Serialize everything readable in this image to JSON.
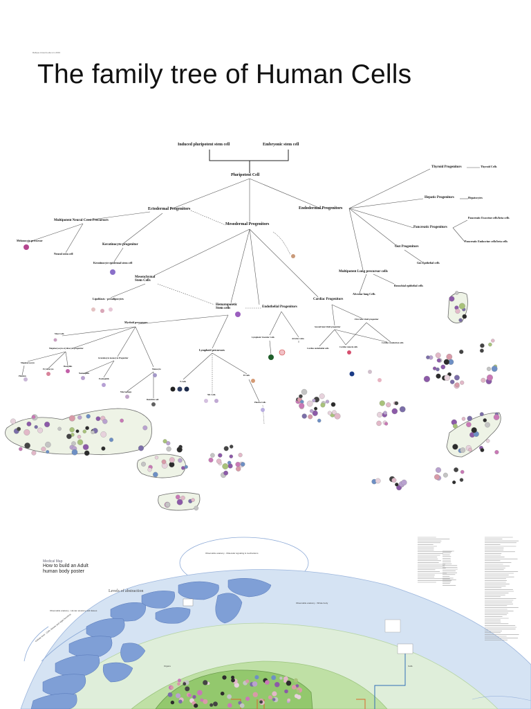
{
  "header": {
    "small_caption": "Rafique Ansari-Leila Lim 2019",
    "title": "The family tree of Human Cells"
  },
  "tree": {
    "induced": "Induced pluripotent stem cell",
    "embryonic": "Embryonic stem cell",
    "pluripotent": "Pluripotent Cell",
    "ectodermal": "Ectodermal Progenitors",
    "endodermal": "Endodermal Progenitors",
    "mesodermal": "Mesodermal Progenitors",
    "neural_crest": "Multipotent Neural Crest Precursors",
    "melanocyte": "Melanocyte precursor",
    "neural_stem": "Neural stem cell",
    "keratinocyte_prog": "Keratinocyte progenitor",
    "keratinocyte": "Keratinocyte epidermal stem cell",
    "thyroid_prog": "Thyroid Progenitors",
    "thyroid_cells": "Thyroid Cells",
    "hepatic_prog": "Hepatic Progenitors",
    "hepatocytes": "Hepatocytes",
    "pancreatic_prog": "Pancreatic Progenitors",
    "pancreatic_exo": "Pancreatic Exocrine cells/beta cells",
    "pancreatic_endo": "Pancreatic Endocrine cells/beta cells",
    "gut_prog": "Gut Progenitors",
    "gut_epi": "Gut Epithelial cells",
    "lung": "Multipotent Lung precursor cells",
    "alveolar": "Alveolar lung Cells",
    "bronchial": "Bronchial epithelial cells",
    "mesenchymal": "Mesenchymal Stem Cells",
    "lipid": "Lipoblasts · preadipocytes",
    "hematopoietic": "Hematopoietic Stem cells",
    "endothelial": "Endothelial Progenitors",
    "cardiac": "Cardiac Progenitors",
    "first_heart": "First heart field progenitor",
    "second_heart": "Second heart field progenitor",
    "lymphatic": "Lymphatic Vascular Cells",
    "arteries": "Arteries veins",
    "cardiac_endo": "Cardiac endothelial cells",
    "cardiac_muscle": "Cardiac muscle cells",
    "cardiac_cond": "Cardiac conduction cells",
    "myeloid": "Myeloid precursors",
    "lymphoid": "Lymphoid precursors",
    "mast": "Mast Cells",
    "megak": "Megakaryocyte erythrocyte progenitor",
    "granulocyte": "Granulocyte monocyte Progenitor",
    "megakaryocyte": "Megakaryocyte",
    "erythrocyte": "Erythrocyte",
    "basophils": "Basophils",
    "neutrophils": "Neutrophils",
    "eosinophils": "Eosinophils",
    "platelets": "Platelets",
    "monocyte": "Monocyte",
    "macrophage": "Macrophage",
    "dendritic": "Dendritic cell",
    "tcells": "T-Cells",
    "nkcells": "NK Cells",
    "bcells": "B Cells",
    "plasma": "Plasma Cells"
  },
  "poster": {
    "brand": "Medical Map",
    "title": "How to build an Adult human body poster",
    "levels": "Levels of abstraction",
    "anatomy_top": "Observable anatomy - Molecular signaling & mechanisms",
    "anatomy_left": "Observable anatomy - Human anatomy and tissues",
    "anatomy_right": "Observable anatomy - Whole body",
    "left_arc": "Cellular level - Cells, tissues and organ functions",
    "organs": "Organs",
    "cells": "Cells"
  },
  "colors": {
    "line": "#555555",
    "outer_ring": "#d5e3f3",
    "mid_ring": "#dfeeda",
    "inner": "#a9d48a",
    "organ_blue": "#7f9fd6",
    "cell_pink": "#c978b6",
    "connector": "#2f6db5"
  }
}
